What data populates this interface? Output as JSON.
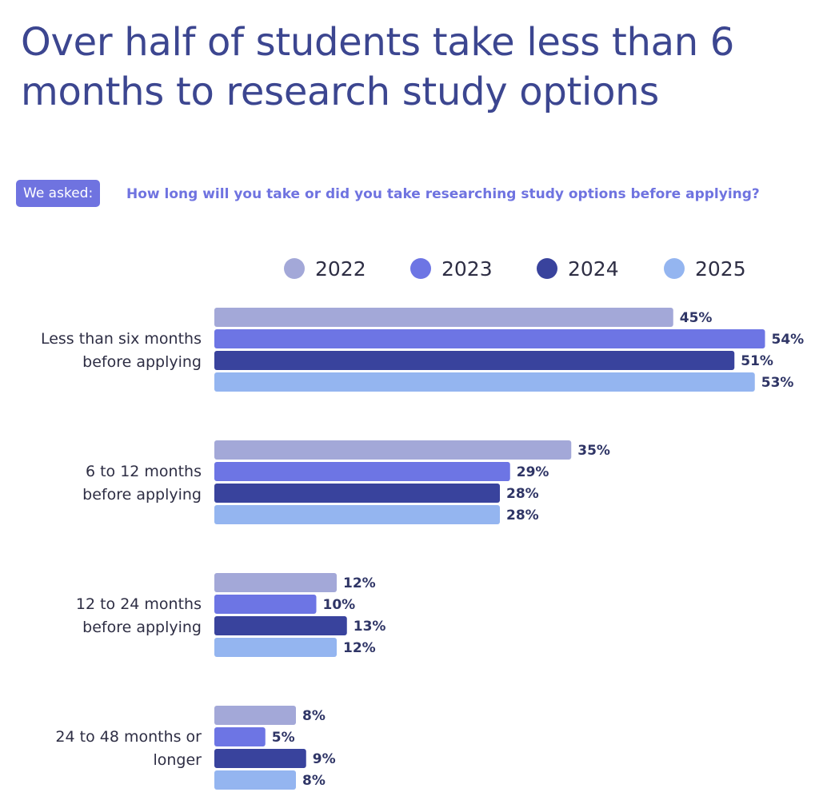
{
  "header": {
    "title": "Over half of students take less than 6 months to research study options",
    "badge": "We asked:",
    "question": "How long will you take or did you take researching study options before applying?"
  },
  "chart_data": {
    "type": "bar",
    "orientation": "horizontal",
    "categories": [
      [
        "Less than six months",
        "before applying"
      ],
      [
        "6 to 12 months",
        "before applying"
      ],
      [
        "12 to 24 months",
        "before applying"
      ],
      [
        "24 to 48 months or",
        "longer"
      ]
    ],
    "series": [
      {
        "name": "2022",
        "color": "#a3a8d8",
        "values": [
          45,
          35,
          12,
          8
        ]
      },
      {
        "name": "2023",
        "color": "#6d75e4",
        "values": [
          54,
          29,
          10,
          5
        ]
      },
      {
        "name": "2024",
        "color": "#39439d",
        "values": [
          51,
          28,
          13,
          9
        ]
      },
      {
        "name": "2025",
        "color": "#94b5f0",
        "values": [
          53,
          28,
          12,
          8
        ]
      }
    ],
    "value_suffix": "%",
    "xlim": [
      0,
      55
    ],
    "legend_position": "top",
    "grid": false
  }
}
